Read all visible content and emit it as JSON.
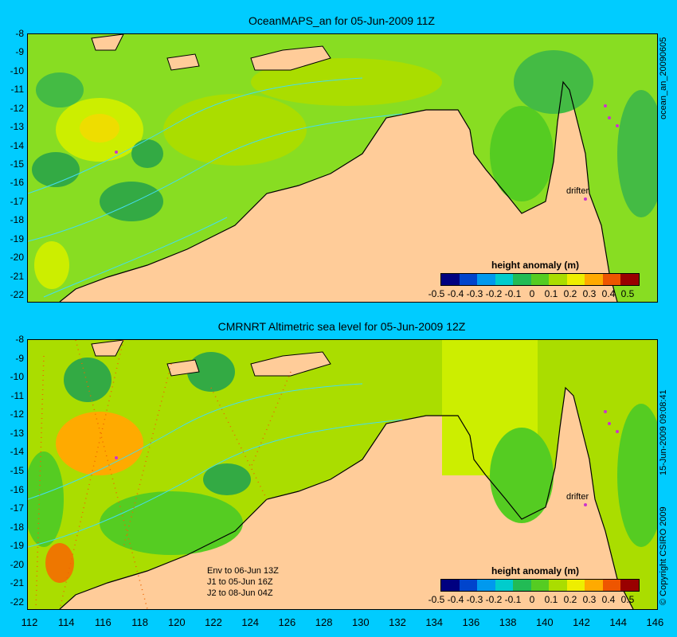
{
  "panel1": {
    "title": "OceanMAPS_an for 05-Jun-2009 11Z",
    "side_label": "ocean_an_20090605",
    "drifter_label": "drifter",
    "colorbar_title": "height anomaly (m)"
  },
  "panel2": {
    "title": "CMRNRT Altimetric sea level  for 05-Jun-2009 12Z",
    "side_label": "15-Jun-2009 09:08:41",
    "copyright": "© Copyright CSIRO 2009",
    "drifter_label": "drifter",
    "colorbar_title": "height anomaly (m)",
    "notes": [
      "Env to 06-Jun 13Z",
      "J1 to 05-Jun 16Z",
      "J2 to 08-Jun 04Z"
    ]
  },
  "y_ticks": [
    "-8",
    "-9",
    "-10",
    "-11",
    "-12",
    "-13",
    "-14",
    "-15",
    "-16",
    "-17",
    "-18",
    "-19",
    "-20",
    "-21",
    "-22"
  ],
  "x_ticks": [
    "112",
    "114",
    "116",
    "118",
    "120",
    "122",
    "124",
    "126",
    "128",
    "130",
    "132",
    "134",
    "136",
    "138",
    "140",
    "142",
    "144",
    "146"
  ],
  "colorbar_ticks": [
    "-0.5",
    "-0.4",
    "-0.3",
    "-0.2",
    "-0.1",
    "0",
    "0.1",
    "0.2",
    "0.3",
    "0.4",
    "0.5"
  ],
  "colorbar_colors": [
    "#000080",
    "#0044cc",
    "#0099ee",
    "#00cccc",
    "#22bb55",
    "#55cc22",
    "#aadd00",
    "#eeee00",
    "#ffaa00",
    "#ee5500",
    "#990000"
  ],
  "colors": {
    "background": "#00ccff",
    "land": "#ffcc99",
    "ocean_base": "#88dd22",
    "contour": "#44ddee"
  }
}
